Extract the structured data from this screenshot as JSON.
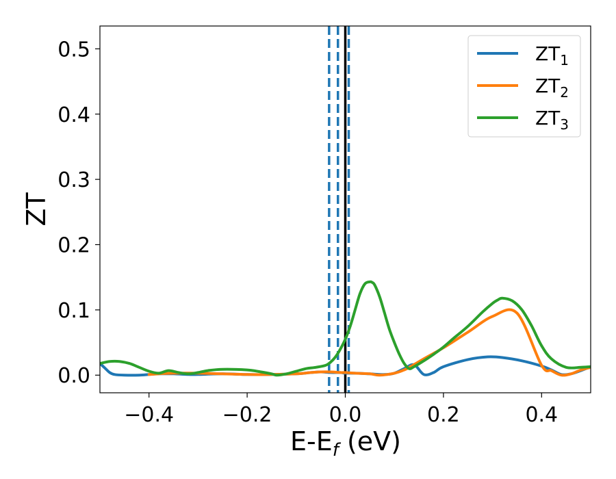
{
  "chart_data": {
    "type": "line",
    "title": "",
    "xlabel_main": "E-E",
    "xlabel_sub": "f",
    "xlabel_unit": " (eV)",
    "ylabel": "ZT",
    "xlim": [
      -0.5,
      0.5
    ],
    "ylim": [
      -0.027,
      0.535
    ],
    "grid": false,
    "legend_position": "top-right",
    "x_ticks": [
      {
        "value": -0.4,
        "label": "−0.4"
      },
      {
        "value": -0.2,
        "label": "−0.2"
      },
      {
        "value": 0.0,
        "label": "0.0"
      },
      {
        "value": 0.2,
        "label": "0.2"
      },
      {
        "value": 0.4,
        "label": "0.4"
      }
    ],
    "y_ticks": [
      {
        "value": 0.0,
        "label": "0.0"
      },
      {
        "value": 0.1,
        "label": "0.1"
      },
      {
        "value": 0.2,
        "label": "0.2"
      },
      {
        "value": 0.3,
        "label": "0.3"
      },
      {
        "value": 0.4,
        "label": "0.4"
      },
      {
        "value": 0.5,
        "label": "0.5"
      }
    ],
    "vlines": [
      {
        "x": -0.033,
        "color": "#1f77b4",
        "style": "dashed"
      },
      {
        "x": -0.015,
        "color": "#1f77b4",
        "style": "dashed"
      },
      {
        "x": 0.007,
        "color": "#1f77b4",
        "style": "dashed"
      },
      {
        "x": 0.0,
        "color": "#000000",
        "style": "solid"
      }
    ],
    "series": [
      {
        "name_main": "ZT",
        "name_sub": "1",
        "color": "#1f77b4",
        "x": [
          -0.5,
          -0.49,
          -0.48,
          -0.47,
          -0.45,
          -0.42,
          -0.4,
          -0.38,
          -0.35,
          -0.32,
          -0.3,
          -0.25,
          -0.2,
          -0.15,
          -0.1,
          -0.07,
          -0.05,
          -0.03,
          -0.01,
          0.0,
          0.02,
          0.05,
          0.08,
          0.1,
          0.12,
          0.14,
          0.16,
          0.18,
          0.2,
          0.25,
          0.29,
          0.32,
          0.36,
          0.4,
          0.42,
          0.44,
          0.46,
          0.48,
          0.5
        ],
        "y": [
          0.018,
          0.011,
          0.004,
          0.001,
          0.0,
          0.0,
          0.001,
          0.002,
          0.002,
          0.001,
          0.001,
          0.002,
          0.001,
          0.001,
          0.002,
          0.004,
          0.005,
          0.004,
          0.004,
          0.003,
          0.003,
          0.002,
          0.001,
          0.003,
          0.01,
          0.016,
          0.001,
          0.004,
          0.013,
          0.024,
          0.028,
          0.027,
          0.022,
          0.014,
          0.008,
          0.001,
          0.002,
          0.007,
          0.013
        ]
      },
      {
        "name_main": "ZT",
        "name_sub": "2",
        "color": "#ff7f0e",
        "x": [
          -0.4,
          -0.38,
          -0.35,
          -0.3,
          -0.25,
          -0.2,
          -0.15,
          -0.1,
          -0.07,
          -0.05,
          -0.03,
          -0.01,
          0.0,
          0.02,
          0.05,
          0.07,
          0.1,
          0.12,
          0.135,
          0.16,
          0.2,
          0.25,
          0.3,
          0.35,
          0.4,
          0.42,
          0.44,
          0.46,
          0.48,
          0.5
        ],
        "y": [
          0.001,
          0.002,
          0.003,
          0.003,
          0.002,
          0.001,
          0.001,
          0.002,
          0.004,
          0.005,
          0.005,
          0.004,
          0.004,
          0.003,
          0.002,
          0.0,
          0.003,
          0.008,
          0.014,
          0.025,
          0.042,
          0.066,
          0.09,
          0.095,
          0.015,
          0.007,
          0.0,
          0.002,
          0.008,
          0.012
        ]
      },
      {
        "name_main": "ZT",
        "name_sub": "3",
        "color": "#2ca02c",
        "x": [
          -0.5,
          -0.48,
          -0.46,
          -0.44,
          -0.42,
          -0.4,
          -0.38,
          -0.36,
          -0.34,
          -0.32,
          -0.3,
          -0.28,
          -0.25,
          -0.2,
          -0.18,
          -0.15,
          -0.14,
          -0.12,
          -0.1,
          -0.08,
          -0.06,
          -0.04,
          -0.03,
          -0.02,
          -0.01,
          0.0,
          0.01,
          0.02,
          0.03,
          0.04,
          0.05,
          0.055,
          0.06,
          0.07,
          0.08,
          0.09,
          0.1,
          0.11,
          0.12,
          0.13,
          0.14,
          0.16,
          0.18,
          0.2,
          0.22,
          0.25,
          0.28,
          0.3,
          0.31,
          0.32,
          0.34,
          0.36,
          0.38,
          0.4,
          0.42,
          0.45,
          0.48,
          0.5
        ],
        "y": [
          0.018,
          0.021,
          0.021,
          0.018,
          0.012,
          0.006,
          0.003,
          0.007,
          0.004,
          0.002,
          0.004,
          0.007,
          0.009,
          0.008,
          0.006,
          0.002,
          0.0,
          0.002,
          0.006,
          0.01,
          0.012,
          0.015,
          0.02,
          0.028,
          0.04,
          0.055,
          0.075,
          0.1,
          0.125,
          0.14,
          0.143,
          0.142,
          0.138,
          0.12,
          0.095,
          0.07,
          0.05,
          0.032,
          0.018,
          0.01,
          0.013,
          0.022,
          0.032,
          0.043,
          0.056,
          0.075,
          0.097,
          0.11,
          0.115,
          0.118,
          0.114,
          0.1,
          0.075,
          0.045,
          0.025,
          0.012,
          0.012,
          0.013
        ]
      }
    ]
  }
}
